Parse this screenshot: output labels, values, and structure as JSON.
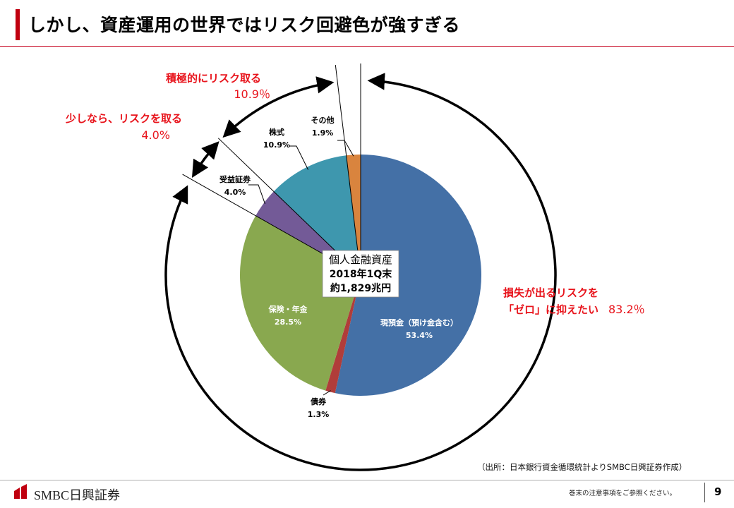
{
  "title": "しかし、資産運用の世界ではリスク回避色が強すぎる",
  "chart_data": {
    "type": "pie",
    "slices": [
      {
        "label": "現預金（預け金含む）",
        "value": 53.4,
        "display": "53.4%",
        "color": "#4470a6"
      },
      {
        "label": "債券",
        "value": 1.3,
        "display": "1.3%",
        "color": "#b03d3a"
      },
      {
        "label": "保険・年金",
        "value": 28.5,
        "display": "28.5%",
        "color": "#89a84f"
      },
      {
        "label": "受益証券",
        "value": 4.0,
        "display": "4.0%",
        "color": "#735a97"
      },
      {
        "label": "株式",
        "value": 10.9,
        "display": "10.9%",
        "color": "#3e97ae"
      },
      {
        "label": "その他",
        "value": 1.9,
        "display": "1.9%",
        "color": "#d9843e"
      }
    ],
    "center_label": [
      "個人金融資産",
      "2018年1Q末",
      "約1,829兆円"
    ]
  },
  "annotations": {
    "active_risk": {
      "label": "積極的にリスク取る",
      "value": "10.9％"
    },
    "some_risk": {
      "label": "少しなら、リスクを取る",
      "value": "4.0%"
    },
    "zero_risk": {
      "line1": "損失が出るリスクを",
      "line2": "「ゼロ」に抑えたい",
      "value": "83.2％"
    }
  },
  "colors": {
    "accent": "#c0000f",
    "annotation_red": "#e8141c"
  },
  "source": "（出所：日本銀行資金循環統計よりSMBC日興証券作成）",
  "footer": {
    "logo": "SMBC日興証券",
    "notice": "巻末の注意事項をご参照ください。",
    "page": "9"
  }
}
